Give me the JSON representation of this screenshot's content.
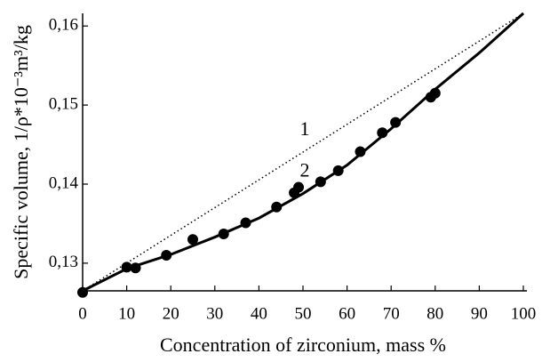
{
  "chart_data": {
    "type": "line",
    "xlabel": "Concentration of zirconium, mass %",
    "ylabel": "Specific volume, 1/ρ*10⁻³m³/kg",
    "xlim": [
      0,
      100
    ],
    "xticks": [
      0,
      10,
      20,
      30,
      40,
      50,
      60,
      70,
      80,
      90,
      100
    ],
    "ylim": [
      0.1265,
      0.1616
    ],
    "yticks": [
      {
        "value": 0.13,
        "label": "0,13"
      },
      {
        "value": 0.14,
        "label": "0,14"
      },
      {
        "value": 0.15,
        "label": "0,15"
      },
      {
        "value": 0.16,
        "label": "0,16"
      }
    ],
    "series": [
      {
        "name": "1",
        "color": "#000000",
        "style": "dotted",
        "x": [
          0,
          100
        ],
        "values": [
          0.1265,
          0.1616
        ]
      },
      {
        "name": "2",
        "color": "#000000",
        "style": "solid",
        "x": [
          0,
          10,
          20,
          30,
          40,
          50,
          60,
          70,
          80,
          90,
          100
        ],
        "values": [
          0.1265,
          0.1293,
          0.1311,
          0.1333,
          0.1357,
          0.1388,
          0.1424,
          0.147,
          0.152,
          0.1566,
          0.1616
        ]
      }
    ],
    "points": {
      "color": "#000000",
      "x": [
        0,
        10,
        12,
        19,
        25,
        32,
        37,
        44,
        48,
        49,
        54,
        58,
        63,
        68,
        71,
        79,
        80
      ],
      "values": [
        0.1263,
        0.1295,
        0.1294,
        0.131,
        0.133,
        0.1337,
        0.1351,
        0.1371,
        0.1389,
        0.1396,
        0.1403,
        0.1417,
        0.1441,
        0.1465,
        0.1478,
        0.151,
        0.1515
      ]
    }
  }
}
